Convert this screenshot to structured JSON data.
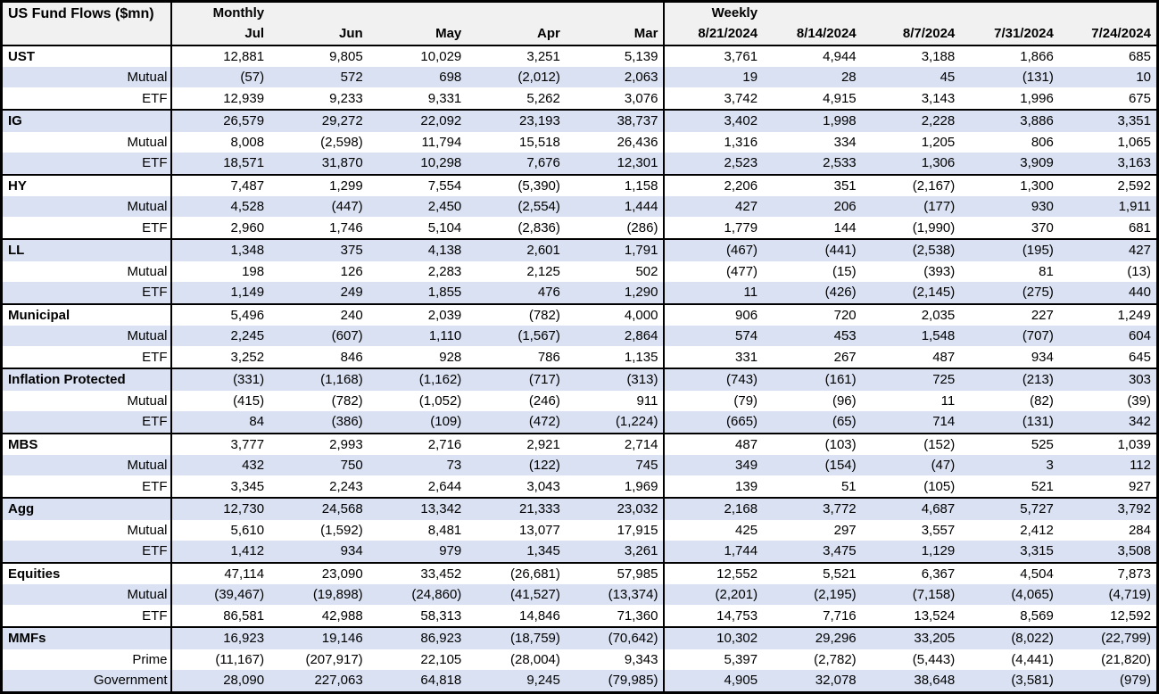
{
  "colors": {
    "row_shade": "#d9e1f2",
    "header_bg": "#f1f1f1",
    "border": "#000000",
    "text": "#000000",
    "background": "#ffffff"
  },
  "chart_data": {
    "type": "table",
    "title": "US Fund Flows ($mn)",
    "layout": {
      "grid": "off",
      "negatives_in_parentheses": true,
      "alternating_row_shading": true
    },
    "column_groups": [
      {
        "label": "Monthly",
        "columns": [
          "Jul",
          "Jun",
          "May",
          "Apr",
          "Mar"
        ]
      },
      {
        "label": "Weekly",
        "columns": [
          "8/21/2024",
          "8/14/2024",
          "8/7/2024",
          "7/31/2024",
          "7/24/2024"
        ]
      }
    ],
    "rows": [
      {
        "label": "UST",
        "style": "group",
        "values": [
          "12,881",
          "9,805",
          "10,029",
          "3,251",
          "5,139",
          "3,761",
          "4,944",
          "3,188",
          "1,866",
          "685"
        ]
      },
      {
        "label": "Mutual",
        "style": "sub",
        "values": [
          "(57)",
          "572",
          "698",
          "(2,012)",
          "2,063",
          "19",
          "28",
          "45",
          "(131)",
          "10"
        ]
      },
      {
        "label": "ETF",
        "style": "sub",
        "values": [
          "12,939",
          "9,233",
          "9,331",
          "5,262",
          "3,076",
          "3,742",
          "4,915",
          "3,143",
          "1,996",
          "675"
        ]
      },
      {
        "label": "IG",
        "style": "group",
        "values": [
          "26,579",
          "29,272",
          "22,092",
          "23,193",
          "38,737",
          "3,402",
          "1,998",
          "2,228",
          "3,886",
          "3,351"
        ]
      },
      {
        "label": "Mutual",
        "style": "sub",
        "values": [
          "8,008",
          "(2,598)",
          "11,794",
          "15,518",
          "26,436",
          "1,316",
          "334",
          "1,205",
          "806",
          "1,065"
        ]
      },
      {
        "label": "ETF",
        "style": "sub",
        "values": [
          "18,571",
          "31,870",
          "10,298",
          "7,676",
          "12,301",
          "2,523",
          "2,533",
          "1,306",
          "3,909",
          "3,163"
        ]
      },
      {
        "label": "HY",
        "style": "group",
        "values": [
          "7,487",
          "1,299",
          "7,554",
          "(5,390)",
          "1,158",
          "2,206",
          "351",
          "(2,167)",
          "1,300",
          "2,592"
        ]
      },
      {
        "label": "Mutual",
        "style": "sub",
        "values": [
          "4,528",
          "(447)",
          "2,450",
          "(2,554)",
          "1,444",
          "427",
          "206",
          "(177)",
          "930",
          "1,911"
        ]
      },
      {
        "label": "ETF",
        "style": "sub",
        "values": [
          "2,960",
          "1,746",
          "5,104",
          "(2,836)",
          "(286)",
          "1,779",
          "144",
          "(1,990)",
          "370",
          "681"
        ]
      },
      {
        "label": "LL",
        "style": "group",
        "values": [
          "1,348",
          "375",
          "4,138",
          "2,601",
          "1,791",
          "(467)",
          "(441)",
          "(2,538)",
          "(195)",
          "427"
        ]
      },
      {
        "label": "Mutual",
        "style": "sub",
        "values": [
          "198",
          "126",
          "2,283",
          "2,125",
          "502",
          "(477)",
          "(15)",
          "(393)",
          "81",
          "(13)"
        ]
      },
      {
        "label": "ETF",
        "style": "sub",
        "values": [
          "1,149",
          "249",
          "1,855",
          "476",
          "1,290",
          "11",
          "(426)",
          "(2,145)",
          "(275)",
          "440"
        ]
      },
      {
        "label": "Municipal",
        "style": "group",
        "values": [
          "5,496",
          "240",
          "2,039",
          "(782)",
          "4,000",
          "906",
          "720",
          "2,035",
          "227",
          "1,249"
        ]
      },
      {
        "label": "Mutual",
        "style": "sub",
        "values": [
          "2,245",
          "(607)",
          "1,110",
          "(1,567)",
          "2,864",
          "574",
          "453",
          "1,548",
          "(707)",
          "604"
        ]
      },
      {
        "label": "ETF",
        "style": "sub",
        "values": [
          "3,252",
          "846",
          "928",
          "786",
          "1,135",
          "331",
          "267",
          "487",
          "934",
          "645"
        ]
      },
      {
        "label": "Inflation Protected",
        "style": "group",
        "values": [
          "(331)",
          "(1,168)",
          "(1,162)",
          "(717)",
          "(313)",
          "(743)",
          "(161)",
          "725",
          "(213)",
          "303"
        ]
      },
      {
        "label": "Mutual",
        "style": "sub",
        "values": [
          "(415)",
          "(782)",
          "(1,052)",
          "(246)",
          "911",
          "(79)",
          "(96)",
          "11",
          "(82)",
          "(39)"
        ]
      },
      {
        "label": "ETF",
        "style": "sub",
        "values": [
          "84",
          "(386)",
          "(109)",
          "(472)",
          "(1,224)",
          "(665)",
          "(65)",
          "714",
          "(131)",
          "342"
        ]
      },
      {
        "label": "MBS",
        "style": "group",
        "values": [
          "3,777",
          "2,993",
          "2,716",
          "2,921",
          "2,714",
          "487",
          "(103)",
          "(152)",
          "525",
          "1,039"
        ]
      },
      {
        "label": "Mutual",
        "style": "sub",
        "values": [
          "432",
          "750",
          "73",
          "(122)",
          "745",
          "349",
          "(154)",
          "(47)",
          "3",
          "112"
        ]
      },
      {
        "label": "ETF",
        "style": "sub",
        "values": [
          "3,345",
          "2,243",
          "2,644",
          "3,043",
          "1,969",
          "139",
          "51",
          "(105)",
          "521",
          "927"
        ]
      },
      {
        "label": "Agg",
        "style": "group",
        "values": [
          "12,730",
          "24,568",
          "13,342",
          "21,333",
          "23,032",
          "2,168",
          "3,772",
          "4,687",
          "5,727",
          "3,792"
        ]
      },
      {
        "label": "Mutual",
        "style": "sub",
        "values": [
          "5,610",
          "(1,592)",
          "8,481",
          "13,077",
          "17,915",
          "425",
          "297",
          "3,557",
          "2,412",
          "284"
        ]
      },
      {
        "label": "ETF",
        "style": "sub",
        "values": [
          "1,412",
          "934",
          "979",
          "1,345",
          "3,261",
          "1,744",
          "3,475",
          "1,129",
          "3,315",
          "3,508"
        ]
      },
      {
        "label": "Equities",
        "style": "group",
        "values": [
          "47,114",
          "23,090",
          "33,452",
          "(26,681)",
          "57,985",
          "12,552",
          "5,521",
          "6,367",
          "4,504",
          "7,873"
        ]
      },
      {
        "label": "Mutual",
        "style": "sub",
        "values": [
          "(39,467)",
          "(19,898)",
          "(24,860)",
          "(41,527)",
          "(13,374)",
          "(2,201)",
          "(2,195)",
          "(7,158)",
          "(4,065)",
          "(4,719)"
        ]
      },
      {
        "label": "ETF",
        "style": "sub",
        "values": [
          "86,581",
          "42,988",
          "58,313",
          "14,846",
          "71,360",
          "14,753",
          "7,716",
          "13,524",
          "8,569",
          "12,592"
        ]
      },
      {
        "label": "MMFs",
        "style": "group",
        "values": [
          "16,923",
          "19,146",
          "86,923",
          "(18,759)",
          "(70,642)",
          "10,302",
          "29,296",
          "33,205",
          "(8,022)",
          "(22,799)"
        ]
      },
      {
        "label": "Prime",
        "style": "sub",
        "values": [
          "(11,167)",
          "(207,917)",
          "22,105",
          "(28,004)",
          "9,343",
          "5,397",
          "(2,782)",
          "(5,443)",
          "(4,441)",
          "(21,820)"
        ]
      },
      {
        "label": "Government",
        "style": "sub",
        "values": [
          "28,090",
          "227,063",
          "64,818",
          "9,245",
          "(79,985)",
          "4,905",
          "32,078",
          "38,648",
          "(3,581)",
          "(979)"
        ]
      }
    ]
  }
}
